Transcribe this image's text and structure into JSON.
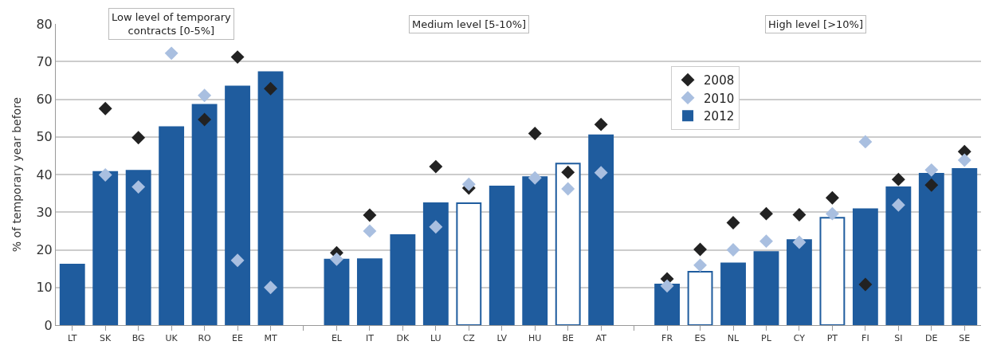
{
  "chart_data": {
    "type": "bar",
    "ylabel": "% of temporary year before",
    "categories": [
      "LT",
      "SK",
      "BG",
      "UK",
      "RO",
      "EE",
      "MT",
      null,
      "EL",
      "IT",
      "DK",
      "LU",
      "CZ",
      "LV",
      "HU",
      "BE",
      "AT",
      null,
      "FR",
      "ES",
      "NL",
      "PL",
      "CY",
      "PT",
      "FI",
      "SI",
      "DE",
      "SE"
    ],
    "series": [
      {
        "name": "2008",
        "type": "scatter",
        "marker": "diamond",
        "color": "#222222",
        "values": [
          null,
          57.5,
          49.8,
          null,
          54.6,
          71.2,
          62.8,
          null,
          19.2,
          29.2,
          null,
          42.1,
          36.4,
          null,
          50.9,
          40.6,
          53.3,
          null,
          12.3,
          20.1,
          27.2,
          29.6,
          29.3,
          33.8,
          10.8,
          38.7,
          37.2,
          46.1
        ]
      },
      {
        "name": "2010",
        "type": "scatter",
        "marker": "diamond",
        "color": "#a9bfe0",
        "values": [
          null,
          39.9,
          36.7,
          72.2,
          61,
          17.2,
          10,
          null,
          17.5,
          25,
          null,
          26.1,
          37.4,
          null,
          39.1,
          36.2,
          40.5,
          null,
          10.4,
          15.9,
          20,
          22.3,
          22,
          29.6,
          48.7,
          31.9,
          41.2,
          43.8
        ]
      },
      {
        "name": "2012",
        "color": "#1f5c9e",
        "colors": [
          "#1f5c9e",
          "#1f5c9e",
          "#1f5c9e",
          "#1f5c9e",
          "#1f5c9e",
          "#1f5c9e",
          "#1f5c9e",
          null,
          "#1f5c9e",
          "#1f5c9e",
          "#1f5c9e",
          "#1f5c9e",
          "#ffffff",
          "#1f5c9e",
          "#1f5c9e",
          "#ffffff",
          "#1f5c9e",
          null,
          "#1f5c9e",
          "#ffffff",
          "#1f5c9e",
          "#1f5c9e",
          "#1f5c9e",
          "#ffffff",
          "#1f5c9e",
          "#1f5c9e",
          "#1f5c9e",
          "#1f5c9e"
        ],
        "values": [
          16.1,
          40.7,
          41,
          52.6,
          58.5,
          63.4,
          67.2,
          null,
          17.4,
          17.5,
          23.9,
          32.4,
          32.4,
          36.8,
          39.3,
          42.9,
          50.4,
          null,
          10.8,
          14.2,
          16.4,
          19.4,
          22.6,
          28.5,
          30.8,
          36.6,
          40.2,
          41.5
        ]
      }
    ],
    "ylim": [
      0,
      80
    ],
    "yticks": [
      0,
      10,
      20,
      30,
      40,
      50,
      60,
      70,
      80
    ],
    "grid": "y",
    "legend": "top right",
    "annotations": [
      "Low level of temporary\ncontracts [0-5%]",
      "Medium level [5-10%]",
      "High level [>10%]"
    ]
  }
}
